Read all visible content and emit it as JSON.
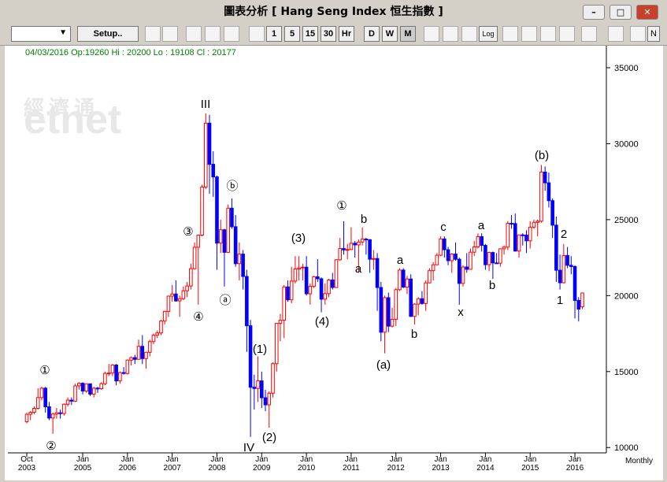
{
  "window": {
    "title": "圖表分析  [ Hang Seng Index   恒生指數 ]"
  },
  "toolbar": {
    "buttons": [
      "Setup..",
      "1",
      "5",
      "15",
      "30",
      "Hr",
      "D",
      "W",
      "M",
      "Log",
      "N"
    ]
  },
  "status": "04/03/2016 Op:19260 Hi : 20200 Lo : 19108 Cl : 20177",
  "watermark": {
    "cn": "經濟通",
    "en": "etnet"
  },
  "chart_data": {
    "type": "candlestick",
    "period": "Monthly",
    "categories": [
      "Oct\n2003",
      null,
      null,
      null,
      null,
      null,
      null,
      null,
      null,
      null,
      null,
      null,
      null,
      null,
      null,
      "Jan\n2005",
      null,
      null,
      null,
      null,
      null,
      null,
      null,
      null,
      null,
      null,
      null,
      "Jan\n2006",
      null,
      null,
      null,
      null,
      null,
      null,
      null,
      null,
      null,
      null,
      null,
      "Jan\n2007",
      null,
      null,
      null,
      null,
      null,
      null,
      null,
      null,
      null,
      null,
      null,
      "Jan\n2008",
      null,
      null,
      null,
      null,
      null,
      null,
      null,
      null,
      null,
      null,
      null,
      "Jan\n2009",
      null,
      null,
      null,
      null,
      null,
      null,
      null,
      null,
      null,
      null,
      null,
      "Jan\n2010",
      null,
      null,
      null,
      null,
      null,
      null,
      null,
      null,
      null,
      null,
      null,
      "Jan\n2011",
      null,
      null,
      null,
      null,
      null,
      null,
      null,
      null,
      null,
      null,
      null,
      "Jan\n2012",
      null,
      null,
      null,
      null,
      null,
      null,
      null,
      null,
      null,
      null,
      null,
      "Jan\n2013",
      null,
      null,
      null,
      null,
      null,
      null,
      null,
      null,
      null,
      null,
      null,
      "Jan\n2014",
      null,
      null,
      null,
      null,
      null,
      null,
      null,
      null,
      null,
      null,
      null,
      "Jan\n2015",
      null,
      null,
      null,
      null,
      null,
      null,
      null,
      null,
      null,
      null,
      null,
      "Jan\n2016",
      null,
      null
    ],
    "ohlc": [
      [
        11700,
        12300,
        11600,
        12190
      ],
      [
        12190,
        12400,
        11800,
        12317
      ],
      [
        12317,
        12700,
        12200,
        12576
      ],
      [
        12576,
        13900,
        12500,
        13289
      ],
      [
        13289,
        14000,
        13100,
        13908
      ],
      [
        13908,
        14000,
        12300,
        12682
      ],
      [
        12682,
        13000,
        11800,
        11942
      ],
      [
        11942,
        12300,
        10900,
        12198
      ],
      [
        12198,
        12600,
        11900,
        12286
      ],
      [
        12286,
        12500,
        11900,
        12238
      ],
      [
        12238,
        12900,
        12100,
        12850
      ],
      [
        12850,
        13300,
        12700,
        13120
      ],
      [
        13120,
        13300,
        12800,
        13054
      ],
      [
        13054,
        14200,
        13000,
        14060
      ],
      [
        14060,
        14300,
        13800,
        14230
      ],
      [
        14230,
        14300,
        13500,
        13721
      ],
      [
        13721,
        14200,
        13600,
        14195
      ],
      [
        14195,
        14200,
        13400,
        13516
      ],
      [
        13516,
        14000,
        13300,
        13908
      ],
      [
        13908,
        14000,
        13600,
        13868
      ],
      [
        13868,
        14300,
        13800,
        14201
      ],
      [
        14201,
        15000,
        14100,
        14880
      ],
      [
        14880,
        15500,
        14700,
        14903
      ],
      [
        14903,
        15500,
        14700,
        15429
      ],
      [
        15429,
        15500,
        14100,
        14386
      ],
      [
        14386,
        15000,
        14200,
        14937
      ],
      [
        14937,
        15300,
        14800,
        14876
      ],
      [
        14876,
        15800,
        14800,
        15753
      ],
      [
        15753,
        16000,
        15400,
        15918
      ],
      [
        15918,
        16100,
        15500,
        15805
      ],
      [
        15805,
        17100,
        15800,
        16661
      ],
      [
        16661,
        17400,
        15500,
        15857
      ],
      [
        15857,
        16300,
        15200,
        16267
      ],
      [
        16267,
        17100,
        16000,
        16971
      ],
      [
        16971,
        17500,
        16800,
        17392
      ],
      [
        17392,
        17700,
        17200,
        17543
      ],
      [
        17543,
        18400,
        17400,
        18324
      ],
      [
        18324,
        19000,
        18100,
        18960
      ],
      [
        18960,
        20000,
        18600,
        19965
      ],
      [
        19965,
        20700,
        19600,
        20106
      ],
      [
        20106,
        21000,
        19600,
        19651
      ],
      [
        19651,
        20000,
        18600,
        19800
      ],
      [
        19800,
        20600,
        19700,
        20318
      ],
      [
        20318,
        20900,
        19900,
        20635
      ],
      [
        20635,
        22100,
        20400,
        21773
      ],
      [
        21773,
        23500,
        21700,
        23184
      ],
      [
        23184,
        24000,
        19400,
        23984
      ],
      [
        23984,
        27300,
        23900,
        27142
      ],
      [
        27142,
        32000,
        27000,
        31352
      ],
      [
        31352,
        31900,
        26700,
        28643
      ],
      [
        28643,
        29500,
        26500,
        27812
      ],
      [
        27812,
        27900,
        21700,
        23456
      ],
      [
        23456,
        25000,
        22800,
        24332
      ],
      [
        24332,
        24400,
        20600,
        22849
      ],
      [
        22849,
        26000,
        22800,
        25755
      ],
      [
        25755,
        26400,
        24400,
        24533
      ],
      [
        24533,
        25300,
        21900,
        22102
      ],
      [
        22102,
        23500,
        21000,
        22731
      ],
      [
        22731,
        23000,
        20400,
        21261
      ],
      [
        21261,
        21700,
        16300,
        18016
      ],
      [
        18016,
        18400,
        10700,
        13969
      ],
      [
        13969,
        14800,
        12500,
        13888
      ],
      [
        13888,
        16000,
        13000,
        14387
      ],
      [
        14387,
        15000,
        12600,
        13278
      ],
      [
        13278,
        13800,
        12400,
        12812
      ],
      [
        12812,
        13700,
        11300,
        13576
      ],
      [
        13576,
        15600,
        13300,
        15521
      ],
      [
        15521,
        18200,
        15000,
        18171
      ],
      [
        18171,
        18800,
        17000,
        18379
      ],
      [
        18379,
        20700,
        17200,
        20573
      ],
      [
        20573,
        21000,
        19600,
        19724
      ],
      [
        19724,
        21900,
        19500,
        20955
      ],
      [
        20955,
        22600,
        20800,
        21753
      ],
      [
        21753,
        22600,
        21000,
        21821
      ],
      [
        21821,
        22100,
        21000,
        21873
      ],
      [
        21873,
        22600,
        20000,
        20122
      ],
      [
        20122,
        20800,
        19400,
        20608
      ],
      [
        20608,
        21300,
        20500,
        21239
      ],
      [
        21239,
        22400,
        20900,
        21108
      ],
      [
        21108,
        21200,
        18900,
        19765
      ],
      [
        19765,
        20800,
        19400,
        20129
      ],
      [
        20129,
        21100,
        19900,
        21030
      ],
      [
        21030,
        21500,
        20400,
        20536
      ],
      [
        20536,
        22400,
        20500,
        22358
      ],
      [
        22358,
        23800,
        22300,
        23096
      ],
      [
        23096,
        24900,
        22700,
        23007
      ],
      [
        23007,
        23400,
        22400,
        23035
      ],
      [
        23035,
        24500,
        23000,
        23447
      ],
      [
        23447,
        23600,
        22500,
        23338
      ],
      [
        23338,
        23700,
        21500,
        23527
      ],
      [
        23527,
        24500,
        23300,
        23720
      ],
      [
        23720,
        23800,
        22700,
        23684
      ],
      [
        23684,
        23700,
        21500,
        22398
      ],
      [
        22398,
        23000,
        21700,
        22440
      ],
      [
        22440,
        22800,
        19000,
        20534
      ],
      [
        20534,
        20900,
        17000,
        17592
      ],
      [
        17592,
        20000,
        16200,
        19864
      ],
      [
        19864,
        20200,
        17600,
        17989
      ],
      [
        17989,
        19200,
        17900,
        18434
      ],
      [
        18434,
        20500,
        18000,
        20390
      ],
      [
        20390,
        21800,
        20300,
        21680
      ],
      [
        21680,
        21800,
        20500,
        20556
      ],
      [
        20556,
        21300,
        20100,
        21094
      ],
      [
        21094,
        21400,
        18600,
        18630
      ],
      [
        18630,
        19500,
        18100,
        19441
      ],
      [
        19441,
        19900,
        18700,
        19796
      ],
      [
        19796,
        20300,
        19400,
        19482
      ],
      [
        19482,
        21000,
        19000,
        20840
      ],
      [
        20840,
        21800,
        20800,
        21642
      ],
      [
        21642,
        22200,
        21000,
        22030
      ],
      [
        22030,
        22800,
        22000,
        22657
      ],
      [
        22657,
        23900,
        22600,
        23730
      ],
      [
        23730,
        23900,
        22500,
        23020
      ],
      [
        23020,
        23200,
        22000,
        22300
      ],
      [
        22300,
        22800,
        21500,
        22737
      ],
      [
        22737,
        23500,
        22300,
        22392
      ],
      [
        22392,
        22500,
        19400,
        20803
      ],
      [
        20803,
        22000,
        20600,
        21883
      ],
      [
        21883,
        22800,
        21500,
        21731
      ],
      [
        21731,
        23100,
        21700,
        22860
      ],
      [
        22860,
        23600,
        22600,
        23206
      ],
      [
        23206,
        24100,
        23100,
        23881
      ],
      [
        23881,
        24100,
        22900,
        23306
      ],
      [
        23306,
        23400,
        21700,
        22035
      ],
      [
        22035,
        22900,
        21600,
        22837
      ],
      [
        22837,
        22900,
        21100,
        22151
      ],
      [
        22151,
        22800,
        22100,
        22134
      ],
      [
        22134,
        23100,
        21900,
        23082
      ],
      [
        23082,
        23300,
        22700,
        23191
      ],
      [
        23191,
        24900,
        23000,
        24757
      ],
      [
        24757,
        25300,
        24400,
        24742
      ],
      [
        24742,
        25400,
        22900,
        22933
      ],
      [
        22933,
        23900,
        22500,
        23998
      ],
      [
        23998,
        24100,
        23300,
        23987
      ],
      [
        23987,
        24300,
        22800,
        23605
      ],
      [
        23605,
        24900,
        23100,
        24507
      ],
      [
        24507,
        25000,
        24400,
        24823
      ],
      [
        24823,
        25000,
        23900,
        24901
      ],
      [
        24901,
        28600,
        24800,
        28133
      ],
      [
        28133,
        28500,
        26900,
        27424
      ],
      [
        27424,
        28100,
        25800,
        26250
      ],
      [
        26250,
        26400,
        23800,
        24636
      ],
      [
        24636,
        25200,
        20900,
        21670
      ],
      [
        21670,
        22700,
        20400,
        20846
      ],
      [
        20846,
        23400,
        20800,
        22640
      ],
      [
        22640,
        23200,
        21800,
        21996
      ],
      [
        21996,
        22600,
        21400,
        21914
      ],
      [
        21914,
        22000,
        18500,
        19683
      ],
      [
        19683,
        19900,
        18300,
        19112
      ],
      [
        19260,
        20200,
        19108,
        20177
      ]
    ],
    "up_color": "#ff0000",
    "down_color": "#0000ff",
    "ylim": [
      9650,
      36450
    ],
    "yticks": [
      10000,
      15000,
      20000,
      25000,
      30000,
      35000
    ],
    "annotations": [
      "①",
      "②",
      "III",
      "③",
      "④",
      "ⓐ",
      "ⓑ",
      "IV",
      "(1)",
      "(2)",
      "(3)",
      "(4)",
      "①",
      "b",
      "a",
      "a",
      "(a)",
      "b",
      "c",
      "x",
      "a",
      "b",
      "(b)",
      "2",
      "1"
    ]
  }
}
